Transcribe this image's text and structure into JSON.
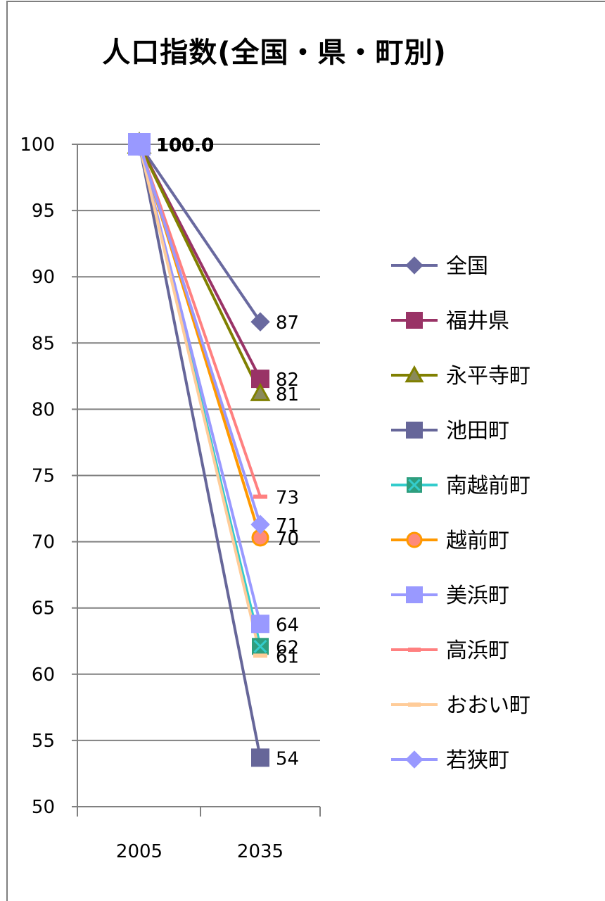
{
  "chart_data": {
    "type": "line",
    "title": "人口指数(全国・県・町別)",
    "categories": [
      "2005",
      "2035"
    ],
    "ylim": [
      50,
      100
    ],
    "yticks": [
      "50",
      "55",
      "60",
      "65",
      "70",
      "75",
      "80",
      "85",
      "90",
      "95",
      "100"
    ],
    "grid": true,
    "legend_position": "right",
    "start_label": "100.0",
    "series": [
      {
        "name": "全国",
        "values": [
          100,
          86.6
        ],
        "end_label": "87",
        "color": "#69699f",
        "marker": "diamond"
      },
      {
        "name": "福井県",
        "values": [
          100,
          82.3
        ],
        "end_label": "82",
        "color": "#993366",
        "marker": "square"
      },
      {
        "name": "永平寺町",
        "values": [
          100,
          81.2
        ],
        "end_label": "81",
        "color": "#808000",
        "marker": "triangle"
      },
      {
        "name": "池田町",
        "values": [
          100,
          53.7
        ],
        "end_label": "54",
        "color": "#666699",
        "marker": "square"
      },
      {
        "name": "南越前町",
        "values": [
          100,
          62.1
        ],
        "end_label": "62",
        "color": "#33cccc",
        "marker": "x"
      },
      {
        "name": "越前町",
        "values": [
          100,
          70.3
        ],
        "end_label": "70",
        "color": "#ff9900",
        "marker": "circle"
      },
      {
        "name": "美浜町",
        "values": [
          100,
          63.8
        ],
        "end_label": "64",
        "color": "#9999ff",
        "marker": "square"
      },
      {
        "name": "高浜町",
        "values": [
          100,
          73.4
        ],
        "end_label": "73",
        "color": "#ff8080",
        "marker": "dash"
      },
      {
        "name": "おおい町",
        "values": [
          100,
          61.4
        ],
        "end_label": "61",
        "color": "#ffcc99",
        "marker": "dash"
      },
      {
        "name": "若狭町",
        "values": [
          100,
          71.3
        ],
        "end_label": "71",
        "color": "#9999ff",
        "marker": "diamond"
      }
    ]
  }
}
